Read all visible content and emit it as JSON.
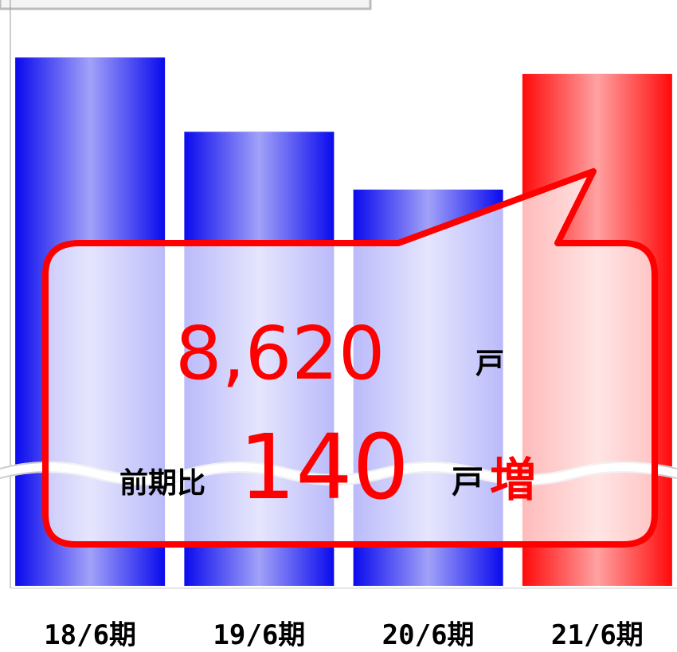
{
  "chart_data": {
    "type": "bar",
    "categories": [
      "18/6期",
      "19/6期",
      "20/6期",
      "21/6期"
    ],
    "values": [
      8640,
      8550,
      8480,
      8620
    ],
    "colors": [
      "#0a0aee",
      "#0a0aee",
      "#0a0aee",
      "#ff0a0a"
    ],
    "ylim": [
      8000,
      8700
    ],
    "annotation": {
      "total": "8,620",
      "total_unit": "戸",
      "prefix": "前期比",
      "change": "140",
      "change_unit": "戸",
      "suffix": "増"
    }
  }
}
